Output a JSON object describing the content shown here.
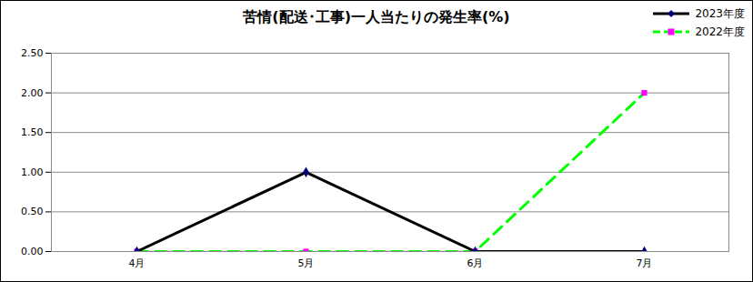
{
  "chart_data": {
    "type": "line",
    "title": "苦情(配送･工事)一人当たりの発生率(%)",
    "categories": [
      "4月",
      "5月",
      "6月",
      "7月"
    ],
    "series": [
      {
        "name": "2023年度",
        "color": "#000000",
        "values": [
          0,
          1,
          0,
          0
        ],
        "marker": "diamond",
        "line_style": "solid"
      },
      {
        "name": "2022年度",
        "color": "#00ff00",
        "values": [
          0,
          0,
          0,
          2
        ],
        "marker": "square",
        "line_style": "dashed"
      }
    ],
    "ylim": [
      0,
      2.5
    ],
    "yticks": [
      {
        "value": 0,
        "label": "0.00"
      },
      {
        "value": 0.5,
        "label": "0.50"
      },
      {
        "value": 1,
        "label": "1.00"
      },
      {
        "value": 1.5,
        "label": "1.50"
      },
      {
        "value": 2,
        "label": "2.00"
      },
      {
        "value": 2.5,
        "label": "2.50"
      }
    ],
    "grid": true,
    "legend": "top-right"
  }
}
